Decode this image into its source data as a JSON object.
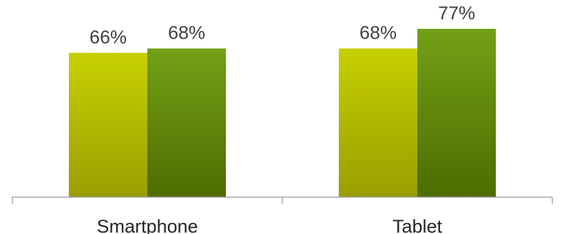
{
  "chart_data": {
    "type": "bar",
    "categories": [
      "Smartphone",
      "Tablet"
    ],
    "series": [
      {
        "values": [
          66,
          68
        ],
        "value_labels": [
          "66%",
          "68%"
        ],
        "color_top": "#c6d000",
        "color_bottom": "#9a9e00"
      },
      {
        "values": [
          68,
          77
        ],
        "value_labels": [
          "68%",
          "77%"
        ],
        "color_top": "#72a016",
        "color_bottom": "#4e6c00"
      }
    ],
    "unit": "%",
    "ylim": [
      0,
      100
    ],
    "grid": false,
    "legend": "none",
    "axis_color": "#a6a6a6"
  }
}
